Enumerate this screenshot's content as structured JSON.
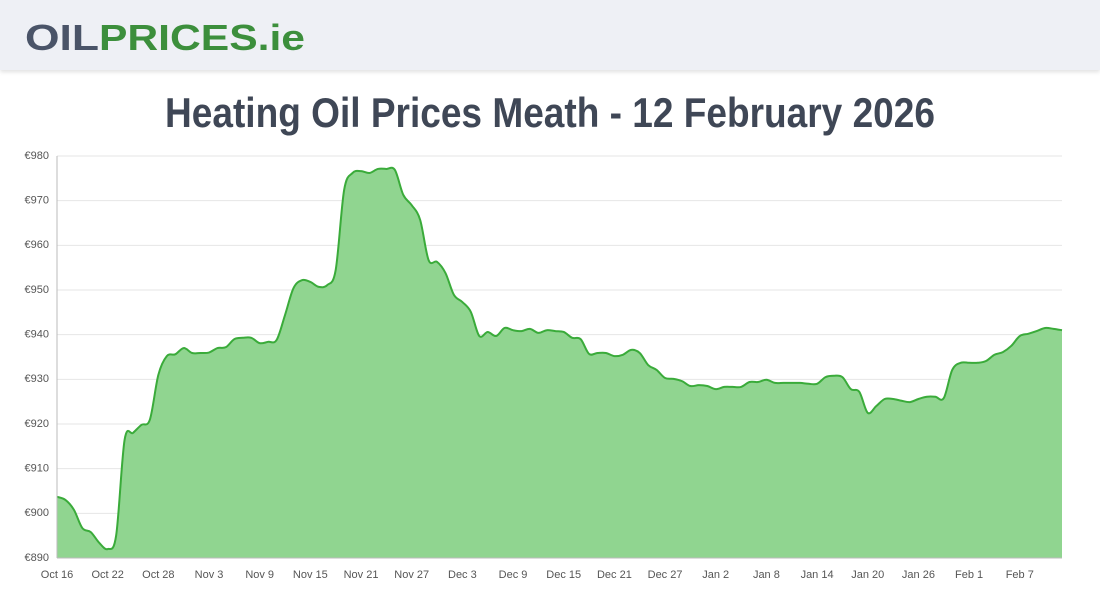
{
  "header": {
    "logo_part1": "OIL",
    "logo_part2": "PRICES.ie"
  },
  "chart_data": {
    "type": "area",
    "title": "Heating Oil Prices Meath - 12 February 2026",
    "categories": [
      "Oct 16",
      null,
      null,
      null,
      null,
      null,
      "Oct 22",
      null,
      null,
      null,
      null,
      null,
      "Oct 28",
      null,
      null,
      null,
      null,
      null,
      "Nov 3",
      null,
      null,
      null,
      null,
      null,
      "Nov 9",
      null,
      null,
      null,
      null,
      null,
      "Nov 15",
      null,
      null,
      null,
      null,
      null,
      "Nov 21",
      null,
      null,
      null,
      null,
      null,
      "Nov 27",
      null,
      null,
      null,
      null,
      null,
      "Dec 3",
      null,
      null,
      null,
      null,
      null,
      "Dec 9",
      null,
      null,
      null,
      null,
      null,
      "Dec 15",
      null,
      null,
      null,
      null,
      null,
      "Dec 21",
      null,
      null,
      null,
      null,
      null,
      "Dec 27",
      null,
      null,
      null,
      null,
      null,
      "Jan 2",
      null,
      null,
      null,
      null,
      null,
      "Jan 8",
      null,
      null,
      null,
      null,
      null,
      "Jan 14",
      null,
      null,
      null,
      null,
      null,
      "Jan 20",
      null,
      null,
      null,
      null,
      null,
      "Jan 26",
      null,
      null,
      null,
      null,
      null,
      "Feb 1",
      null,
      null,
      null,
      null,
      null,
      "Feb 7",
      null,
      null,
      null,
      null,
      null
    ],
    "values": [
      903.7,
      903,
      900.8,
      896.7,
      895.8,
      893.4,
      892,
      895,
      916.4,
      918,
      919.8,
      921,
      931,
      935.2,
      935.6,
      937,
      935.9,
      935.9,
      936,
      937,
      937.2,
      939,
      939.3,
      939.3,
      938.1,
      938.4,
      938.8,
      944.4,
      950.4,
      952.2,
      951.8,
      950.7,
      951.1,
      954.5,
      972.4,
      976.2,
      976.6,
      976.2,
      977.1,
      977.1,
      976.9,
      971.3,
      969,
      965.7,
      956.7,
      956.3,
      953.8,
      948.9,
      947.3,
      945.1,
      939.7,
      940.6,
      939.7,
      941.5,
      941,
      940.8,
      941.3,
      940.4,
      941,
      940.8,
      940.6,
      939.3,
      939,
      935.7,
      935.9,
      935.9,
      935.2,
      935.5,
      936.6,
      935.9,
      933.2,
      932.1,
      930.3,
      930.1,
      929.6,
      928.5,
      928.7,
      928.5,
      927.8,
      928.3,
      928.3,
      928.3,
      929.4,
      929.4,
      929.9,
      929.2,
      929.2,
      929.2,
      929.2,
      929,
      929,
      930.5,
      930.8,
      930.5,
      927.8,
      927.2,
      922.5,
      924,
      925.6,
      925.6,
      925.2,
      924.9,
      925.6,
      926.1,
      926.1,
      925.8,
      932.1,
      933.7,
      933.7,
      933.7,
      934.1,
      935.5,
      936.1,
      937.5,
      939.7,
      940.2,
      940.8,
      941.5,
      941.3,
      941
    ],
    "color": "#3aab3a",
    "fill_color": "#90d590",
    "ylim": [
      890,
      980
    ],
    "yticks": [
      {
        "value": 890,
        "label": "€890"
      },
      {
        "value": 900,
        "label": "€900"
      },
      {
        "value": 910,
        "label": "€910"
      },
      {
        "value": 920,
        "label": "€920"
      },
      {
        "value": 930,
        "label": "€930"
      },
      {
        "value": 940,
        "label": "€940"
      },
      {
        "value": 950,
        "label": "€950"
      },
      {
        "value": 960,
        "label": "€960"
      },
      {
        "value": 970,
        "label": "€970"
      },
      {
        "value": 980,
        "label": "€980"
      }
    ],
    "grid": true
  }
}
